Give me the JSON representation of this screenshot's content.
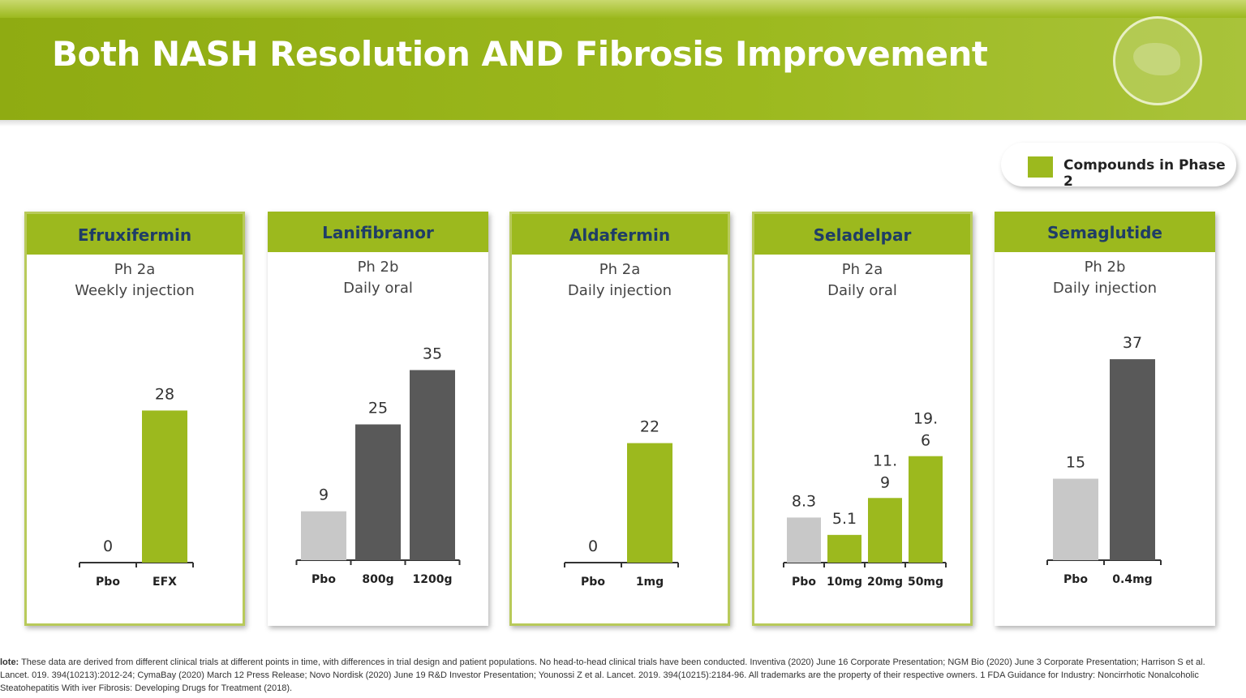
{
  "title": "Both NASH Resolution AND Fibrosis Improvement",
  "legend": {
    "label": "Compounds in Phase 2",
    "color": "#9cb91e"
  },
  "colors": {
    "green": "#9cb91e",
    "light": "#c8c8c8",
    "dark": "#595959"
  },
  "chart_data": [
    {
      "type": "bar",
      "title": "Efruxifermin",
      "phase": "Ph 2a",
      "route": "Weekly injection",
      "phase2": true,
      "categories": [
        "Pbo",
        "EFX"
      ],
      "values": [
        0,
        28
      ],
      "bar_colors": [
        "light",
        "green"
      ]
    },
    {
      "type": "bar",
      "title": "Lanifibranor",
      "phase": "Ph 2b",
      "route": "Daily oral",
      "phase2": false,
      "categories": [
        "Pbo",
        "800g",
        "1200g"
      ],
      "values": [
        9,
        25,
        35
      ],
      "bar_colors": [
        "light",
        "dark",
        "dark"
      ]
    },
    {
      "type": "bar",
      "title": "Aldafermin",
      "phase": "Ph 2a",
      "route": "Daily injection",
      "phase2": true,
      "categories": [
        "Pbo",
        "1mg"
      ],
      "values": [
        0,
        22
      ],
      "bar_colors": [
        "light",
        "green"
      ]
    },
    {
      "type": "bar",
      "title": "Seladelpar",
      "phase": "Ph 2a",
      "route": "Daily oral",
      "phase2": true,
      "categories": [
        "Pbo",
        "10mg",
        "20mg",
        "50mg"
      ],
      "values": [
        8.3,
        5.1,
        11.9,
        19.6
      ],
      "bar_colors": [
        "light",
        "green",
        "green",
        "green"
      ]
    },
    {
      "type": "bar",
      "title": "Semaglutide",
      "phase": "Ph 2b",
      "route": "Daily injection",
      "phase2": false,
      "categories": [
        "Pbo",
        "0.4mg"
      ],
      "values": [
        15,
        37
      ],
      "bar_colors": [
        "light",
        "dark"
      ]
    }
  ],
  "note": {
    "label": "lote:",
    "text": " These data are derived from different clinical trials at different points in time, with differences in trial design and patient populations. No head-to-head clinical trials have been conducted. Inventiva (2020) June 16 Corporate Presentation; NGM Bio (2020) June 3 Corporate Presentation; Harrison S et al. Lancet. 019. 394(10213):2012-24; CymaBay (2020) March 12 Press Release; Novo Nordisk (2020) June 19 R&D Investor Presentation; Younossi Z et al. Lancet. 2019. 394(10215):2184-96. All trademarks are the property of their respective owners. 1 FDA Guidance for Industry: Noncirrhotic Nonalcoholic Steatohepatitis With iver Fibrosis: Developing Drugs for Treatment (2018)."
  }
}
